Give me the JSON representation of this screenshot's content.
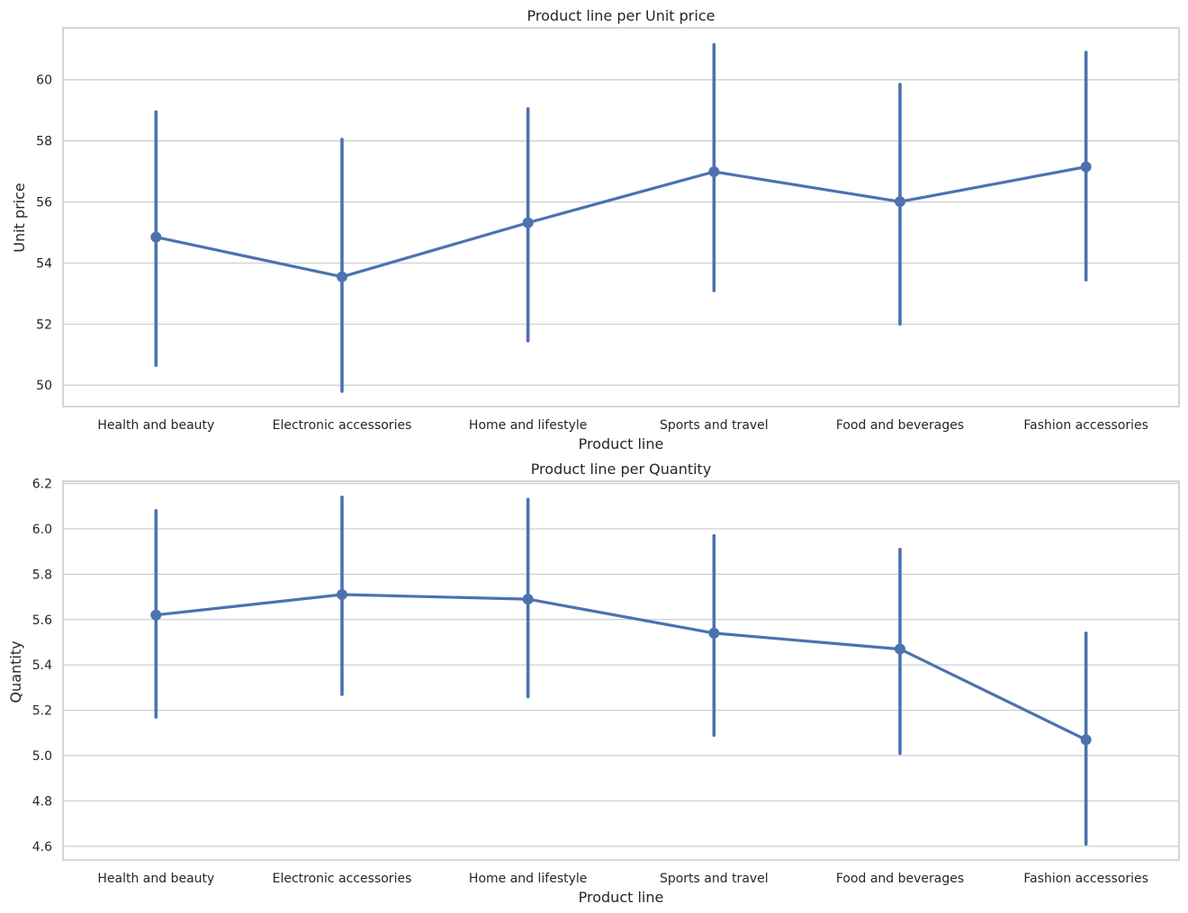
{
  "colors": {
    "series": "#4c72b0",
    "grid": "#cccccc",
    "background": "#ffffff",
    "text": "#262626"
  },
  "chart_data": [
    {
      "type": "line",
      "title": "Product line per Unit price",
      "xlabel": "Product line",
      "ylabel": "Unit price",
      "categories": [
        "Health and beauty",
        "Electronic accessories",
        "Home and lifestyle",
        "Sports and travel",
        "Food and beverages",
        "Fashion accessories"
      ],
      "values": [
        54.85,
        53.55,
        55.32,
        56.99,
        56.01,
        57.15
      ],
      "ci_low": [
        50.65,
        49.8,
        51.45,
        53.1,
        52.0,
        53.45
      ],
      "ci_high": [
        58.95,
        58.05,
        59.05,
        61.15,
        59.85,
        60.9
      ],
      "ylim": [
        49.3,
        61.7
      ],
      "yticks": [
        50,
        52,
        54,
        56,
        58,
        60
      ],
      "ytick_labels": [
        "50",
        "52",
        "54",
        "56",
        "58",
        "60"
      ],
      "grid": "horizontal",
      "error_bars": true
    },
    {
      "type": "line",
      "title": "Product line per Quantity",
      "xlabel": "Product line",
      "ylabel": "Quantity",
      "categories": [
        "Health and beauty",
        "Electronic accessories",
        "Home and lifestyle",
        "Sports and travel",
        "Food and beverages",
        "Fashion accessories"
      ],
      "values": [
        5.62,
        5.71,
        5.69,
        5.54,
        5.47,
        5.07
      ],
      "ci_low": [
        5.17,
        5.27,
        5.26,
        5.09,
        5.01,
        4.61
      ],
      "ci_high": [
        6.08,
        6.14,
        6.13,
        5.97,
        5.91,
        5.54
      ],
      "ylim": [
        4.54,
        6.21
      ],
      "yticks": [
        4.6,
        4.8,
        5.0,
        5.2,
        5.4,
        5.6,
        5.8,
        6.0,
        6.2
      ],
      "ytick_labels": [
        "4.6",
        "4.8",
        "5.0",
        "5.2",
        "5.4",
        "5.6",
        "5.8",
        "6.0",
        "6.2"
      ],
      "grid": "horizontal",
      "error_bars": true
    }
  ]
}
